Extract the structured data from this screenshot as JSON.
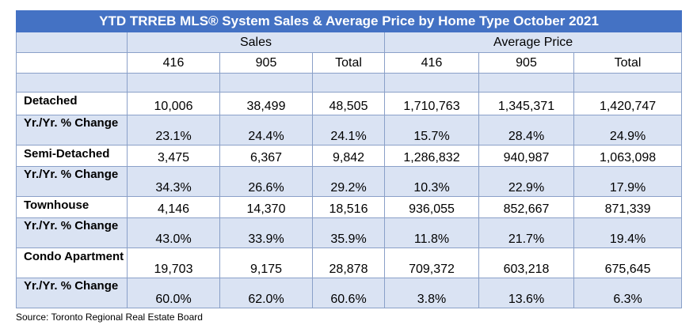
{
  "title": "YTD TRREB MLS® System Sales & Average Price by Home Type October 2021",
  "group_headers": {
    "sales": "Sales",
    "average_price": "Average Price"
  },
  "sub_headers": [
    "416",
    "905",
    "Total",
    "416",
    "905",
    "Total"
  ],
  "rows": [
    {
      "label": "Detached",
      "values": [
        "10,006",
        "38,499",
        "48,505",
        "1,710,763",
        "1,345,371",
        "1,420,747"
      ]
    },
    {
      "label": "Yr./Yr. % Change",
      "values": [
        "23.1%",
        "24.4%",
        "24.1%",
        "15.7%",
        "28.4%",
        "24.9%"
      ]
    },
    {
      "label": "Semi-Detached",
      "values": [
        "3,475",
        "6,367",
        "9,842",
        "1,286,832",
        "940,987",
        "1,063,098"
      ]
    },
    {
      "label": "Yr./Yr. % Change",
      "values": [
        "34.3%",
        "26.6%",
        "29.2%",
        "10.3%",
        "22.9%",
        "17.9%"
      ]
    },
    {
      "label": "Townhouse",
      "values": [
        "4,146",
        "14,370",
        "18,516",
        "936,055",
        "852,667",
        "871,339"
      ]
    },
    {
      "label": "Yr./Yr. % Change",
      "values": [
        "43.0%",
        "33.9%",
        "35.9%",
        "11.8%",
        "21.7%",
        "19.4%"
      ]
    },
    {
      "label": "Condo Apartment",
      "values": [
        "19,703",
        "9,175",
        "28,878",
        "709,372",
        "603,218",
        "675,645"
      ]
    },
    {
      "label": "Yr./Yr. % Change",
      "values": [
        "60.0%",
        "62.0%",
        "60.6%",
        "3.8%",
        "13.6%",
        "6.3%"
      ]
    }
  ],
  "source": "Source: Toronto Regional Real Estate Board",
  "colors": {
    "title_bg": "#4472c4",
    "shaded_bg": "#dae3f3",
    "border": "#8aa0c8"
  }
}
